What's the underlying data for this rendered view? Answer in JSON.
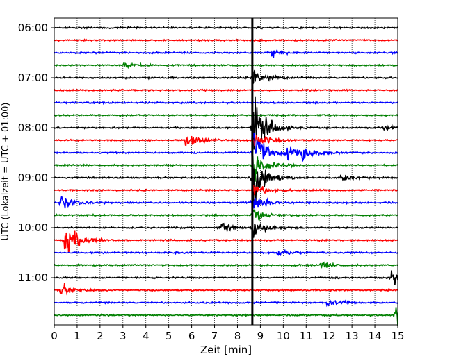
{
  "chart_data": {
    "type": "line",
    "xlabel": "Zeit  [min]",
    "ylabel": "UTC (Lokalzeit = UTC + 01:00)",
    "xlim": [
      0,
      15
    ],
    "x_ticks": [
      "0",
      "1",
      "2",
      "3",
      "4",
      "5",
      "6",
      "7",
      "8",
      "9",
      "10",
      "11",
      "12",
      "13",
      "14",
      "15"
    ],
    "y_ticks": [
      "06:00",
      "07:00",
      "08:00",
      "09:00",
      "10:00",
      "11:00"
    ],
    "grid": {
      "x": true,
      "y": false
    },
    "marker_line_x_min": 8.65,
    "trace_colors": [
      "#000000",
      "#ff0000",
      "#0000ff",
      "#008000"
    ],
    "traces": [
      {
        "start": "06:00",
        "event": []
      },
      {
        "start": "06:15",
        "event": []
      },
      {
        "start": "06:30",
        "event": [
          {
            "t": 9.5,
            "amp": 0.12
          }
        ]
      },
      {
        "start": "06:45",
        "event": [
          {
            "t": 3.0,
            "amp": 0.1
          }
        ]
      },
      {
        "start": "07:00",
        "event": [
          {
            "t": 8.65,
            "amp": 0.3
          }
        ]
      },
      {
        "start": "07:15",
        "event": []
      },
      {
        "start": "07:30",
        "event": []
      },
      {
        "start": "07:45",
        "event": []
      },
      {
        "start": "08:00",
        "event": [
          {
            "t": 8.65,
            "amp": 1.0
          },
          {
            "t": 14.4,
            "amp": 0.1
          }
        ]
      },
      {
        "start": "08:15",
        "event": [
          {
            "t": 5.7,
            "amp": 0.25
          },
          {
            "t": 8.65,
            "amp": 0.3
          }
        ]
      },
      {
        "start": "08:30",
        "event": [
          {
            "t": 8.65,
            "amp": 0.8
          },
          {
            "t": 10.1,
            "amp": 0.3
          },
          {
            "t": 10.8,
            "amp": 0.25
          }
        ]
      },
      {
        "start": "08:45",
        "event": [
          {
            "t": 8.65,
            "amp": 0.5
          }
        ]
      },
      {
        "start": "09:00",
        "event": [
          {
            "t": 8.65,
            "amp": 1.0
          },
          {
            "t": 12.5,
            "amp": 0.12
          }
        ]
      },
      {
        "start": "09:15",
        "event": [
          {
            "t": 8.65,
            "amp": 0.25
          }
        ]
      },
      {
        "start": "09:30",
        "event": [
          {
            "t": 0.3,
            "amp": 0.3
          },
          {
            "t": 8.65,
            "amp": 0.35
          }
        ]
      },
      {
        "start": "09:45",
        "event": [
          {
            "t": 8.65,
            "amp": 0.25
          }
        ]
      },
      {
        "start": "10:00",
        "event": [
          {
            "t": 7.3,
            "amp": 0.15
          },
          {
            "t": 8.65,
            "amp": 0.3
          }
        ]
      },
      {
        "start": "10:15",
        "event": [
          {
            "t": 0.45,
            "amp": 0.6
          }
        ]
      },
      {
        "start": "10:30",
        "event": [
          {
            "t": 9.7,
            "amp": 0.12
          }
        ]
      },
      {
        "start": "10:45",
        "event": [
          {
            "t": 11.6,
            "amp": 0.1
          }
        ]
      },
      {
        "start": "11:00",
        "event": [
          {
            "t": 14.7,
            "amp": 0.3
          }
        ]
      },
      {
        "start": "11:15",
        "event": [
          {
            "t": 0.3,
            "amp": 0.2
          }
        ]
      },
      {
        "start": "11:30",
        "event": [
          {
            "t": 11.9,
            "amp": 0.12
          }
        ]
      },
      {
        "start": "11:45",
        "event": [
          {
            "t": 14.9,
            "amp": 0.5
          }
        ]
      }
    ]
  }
}
